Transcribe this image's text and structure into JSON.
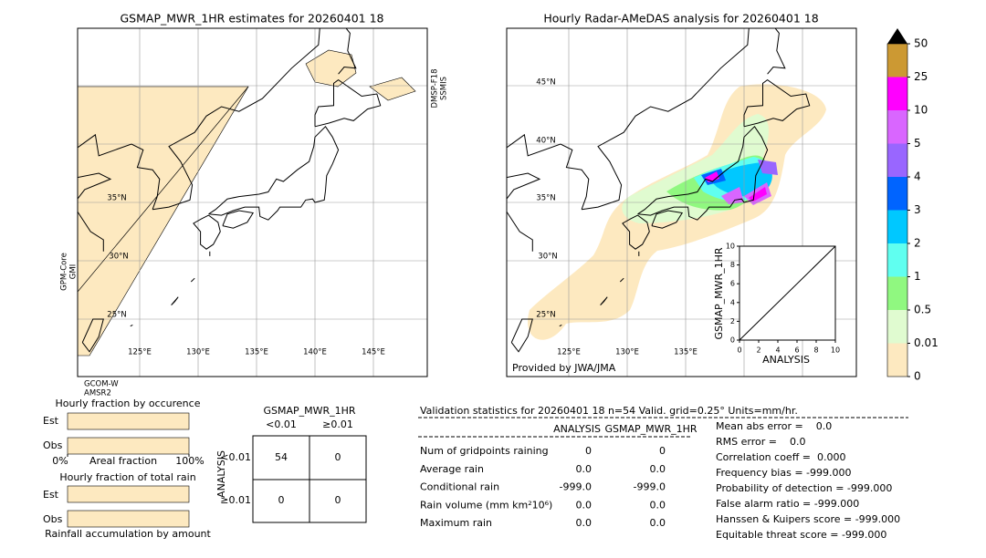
{
  "left_map": {
    "title": "GSMAP_MWR_1HR estimates for 20260401 18",
    "lat_labels": [
      "35°N",
      "30°N",
      "25°N"
    ],
    "lon_labels": [
      "125°E",
      "130°E",
      "135°E",
      "140°E",
      "145°E"
    ],
    "sensors": {
      "top_right": [
        "DMSP-F18",
        "SSMIS"
      ],
      "left": [
        "GPM-Core",
        "GMI"
      ],
      "bottom": [
        "GCOM-W",
        "AMSR2"
      ]
    }
  },
  "right_map": {
    "title": "Hourly Radar-AMeDAS analysis for 20260401 18",
    "lat_labels": [
      "45°N",
      "40°N",
      "35°N",
      "30°N",
      "25°N"
    ],
    "lon_labels": [
      "125°E",
      "130°E",
      "135°E"
    ],
    "credit": "Provided by JWA/JMA"
  },
  "scatter_inset": {
    "xlabel": "ANALYSIS",
    "ylabel": "GSMAP_MWR_1HR",
    "xlim": [
      0,
      10
    ],
    "ylim": [
      0,
      10
    ],
    "xticks": [
      0,
      2,
      4,
      6,
      8,
      10
    ],
    "yticks": [
      0,
      2,
      4,
      6,
      8,
      10
    ]
  },
  "colorbar": {
    "ticks": [
      0,
      0.01,
      0.5,
      1,
      2,
      3,
      4,
      5,
      10,
      25,
      50
    ],
    "colors": [
      "#fde9c0",
      "#e0fbd0",
      "#90f880",
      "#60fff0",
      "#00c8ff",
      "#0064ff",
      "#9966ff",
      "#d966ff",
      "#ff00ff",
      "#cc9933"
    ],
    "extend_color": "#000000"
  },
  "fraction_occurrence": {
    "title": "Hourly fraction by occurence",
    "rows": [
      "Est",
      "Obs"
    ],
    "xticks": [
      {
        "value": 0,
        "label": "0%"
      },
      {
        "value": 100,
        "label": "100%"
      }
    ],
    "xlabel": "Areal fraction"
  },
  "fraction_amount": {
    "title": "Hourly fraction of total rain",
    "rows": [
      "Est",
      "Obs"
    ],
    "xlabel": "Rainfall accumulation by amount"
  },
  "contingency": {
    "title": "GSMAP_MWR_1HR",
    "col_labels": [
      "<0.01",
      "≥0.01"
    ],
    "row_title": "ANALYSIS",
    "row_labels": [
      "<0.01",
      "≥0.01"
    ],
    "cells": [
      [
        54,
        0
      ],
      [
        0,
        0
      ]
    ]
  },
  "validation": {
    "header": "Validation statistics for 20260401 18  n=54 Valid. grid=0.25° Units=mm/hr.",
    "columns": [
      "ANALYSIS",
      "GSMAP_MWR_1HR"
    ],
    "rows": [
      {
        "label": "Num of gridpoints raining",
        "values": [
          "0",
          "0"
        ]
      },
      {
        "label": "Average rain",
        "values": [
          "0.0",
          "0.0"
        ]
      },
      {
        "label": "Conditional rain",
        "values": [
          "-999.0",
          "-999.0"
        ]
      },
      {
        "label": "Rain volume (mm km²10⁶)",
        "values": [
          "0.0",
          "0.0"
        ]
      },
      {
        "label": "Maximum rain",
        "values": [
          "0.0",
          "0.0"
        ]
      }
    ],
    "scores": [
      "Mean abs error =    0.0",
      "RMS error =    0.0",
      "Correlation coeff =  0.000",
      "Frequency bias = -999.000",
      "Probability of detection = -999.000",
      "False alarm ratio = -999.000",
      "Hanssen & Kuipers score = -999.000",
      "Equitable threat score = -999.000"
    ]
  }
}
